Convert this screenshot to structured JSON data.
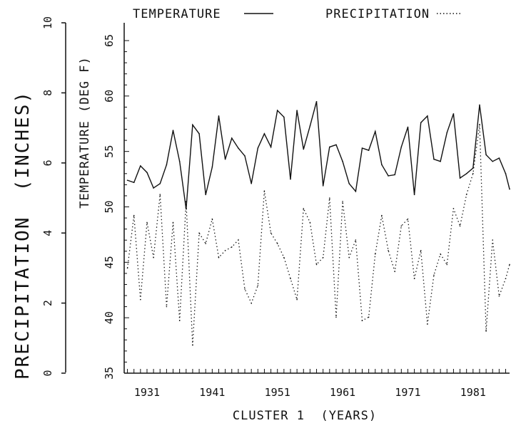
{
  "chart_data": {
    "type": "line",
    "legend": {
      "placement": "top",
      "entries": [
        {
          "label": "TEMPERATURE",
          "style": "solid"
        },
        {
          "label": "PRECIPITATION",
          "style": "dotted"
        }
      ]
    },
    "xlabel": "CLUSTER 1  (YEARS)",
    "ylabel_left": "PRECIPITATION  (INCHES)",
    "ylabel_right": "TEMPERATURE (DEG F)",
    "xlim": [
      1927.5,
      1986.6
    ],
    "ylim_left": [
      0,
      10
    ],
    "ylim_right": [
      35,
      65
    ],
    "x_ticks": [
      1931,
      1941,
      1951,
      1961,
      1971,
      1981
    ],
    "y_ticks_left": [
      0,
      2,
      4,
      6,
      8,
      10
    ],
    "y_ticks_right": [
      35,
      40,
      45,
      50,
      55,
      60,
      65
    ],
    "grid": false,
    "series": [
      {
        "name": "TEMPERATURE",
        "axis": "right",
        "style": "solid",
        "x": [
          1928,
          1929,
          1930,
          1931,
          1932,
          1933,
          1934,
          1935,
          1936,
          1937,
          1938,
          1939,
          1940,
          1941,
          1942,
          1943,
          1944,
          1945,
          1946,
          1947,
          1948,
          1949,
          1950,
          1951,
          1952,
          1953,
          1954,
          1955,
          1956,
          1957,
          1958,
          1959,
          1960,
          1961,
          1962,
          1963,
          1964,
          1965,
          1966,
          1967,
          1968,
          1969,
          1970,
          1971,
          1972,
          1973,
          1974,
          1975,
          1976,
          1977,
          1978,
          1979,
          1980,
          1981,
          1982,
          1983,
          1984,
          1985,
          1986,
          1987
        ],
        "y": [
          52.4,
          52.2,
          53.7,
          53.1,
          51.7,
          52.1,
          53.8,
          56.9,
          54.1,
          49.8,
          57.4,
          56.6,
          51.1,
          53.6,
          58.2,
          54.3,
          56.2,
          55.3,
          54.6,
          52.1,
          55.3,
          56.6,
          55.4,
          58.7,
          58.1,
          52.5,
          58.7,
          55.2,
          57.3,
          59.5,
          51.9,
          55.4,
          55.6,
          54.1,
          52.1,
          51.4,
          55.3,
          55.1,
          56.8,
          53.8,
          52.8,
          52.9,
          55.4,
          57.2,
          51.1,
          57.6,
          58.2,
          54.3,
          54.1,
          56.7,
          58.4,
          52.6,
          53.0,
          53.5,
          59.2,
          54.7,
          54.1,
          54.4,
          53.0,
          51.6
        ]
      },
      {
        "name": "PRECIPITATION",
        "axis": "left",
        "style": "dotted",
        "x": [
          1928,
          1929,
          1930,
          1931,
          1932,
          1933,
          1934,
          1935,
          1936,
          1937,
          1938,
          1939,
          1940,
          1941,
          1942,
          1943,
          1944,
          1945,
          1946,
          1947,
          1948,
          1949,
          1950,
          1951,
          1952,
          1953,
          1954,
          1955,
          1956,
          1957,
          1958,
          1959,
          1960,
          1961,
          1962,
          1963,
          1964,
          1965,
          1966,
          1967,
          1968,
          1969,
          1970,
          1971,
          1972,
          1973,
          1974,
          1975,
          1976,
          1977,
          1978,
          1979,
          1980,
          1981,
          1982,
          1983,
          1984,
          1985,
          1986,
          1987
        ],
        "y": [
          3.0,
          4.5,
          2.1,
          4.3,
          3.3,
          5.1,
          1.9,
          4.3,
          1.5,
          4.9,
          0.8,
          4.0,
          3.7,
          4.4,
          3.3,
          3.5,
          3.6,
          3.8,
          2.4,
          2.0,
          2.5,
          5.2,
          4.0,
          3.7,
          3.3,
          2.7,
          2.1,
          4.7,
          4.3,
          3.1,
          3.3,
          5.0,
          1.6,
          4.9,
          3.3,
          3.8,
          1.5,
          1.6,
          3.4,
          4.5,
          3.5,
          2.9,
          4.2,
          4.4,
          2.7,
          3.5,
          1.4,
          2.8,
          3.4,
          3.1,
          4.7,
          4.2,
          5.1,
          5.7,
          7.1,
          1.2,
          3.8,
          2.2,
          2.7,
          3.1
        ]
      }
    ]
  }
}
